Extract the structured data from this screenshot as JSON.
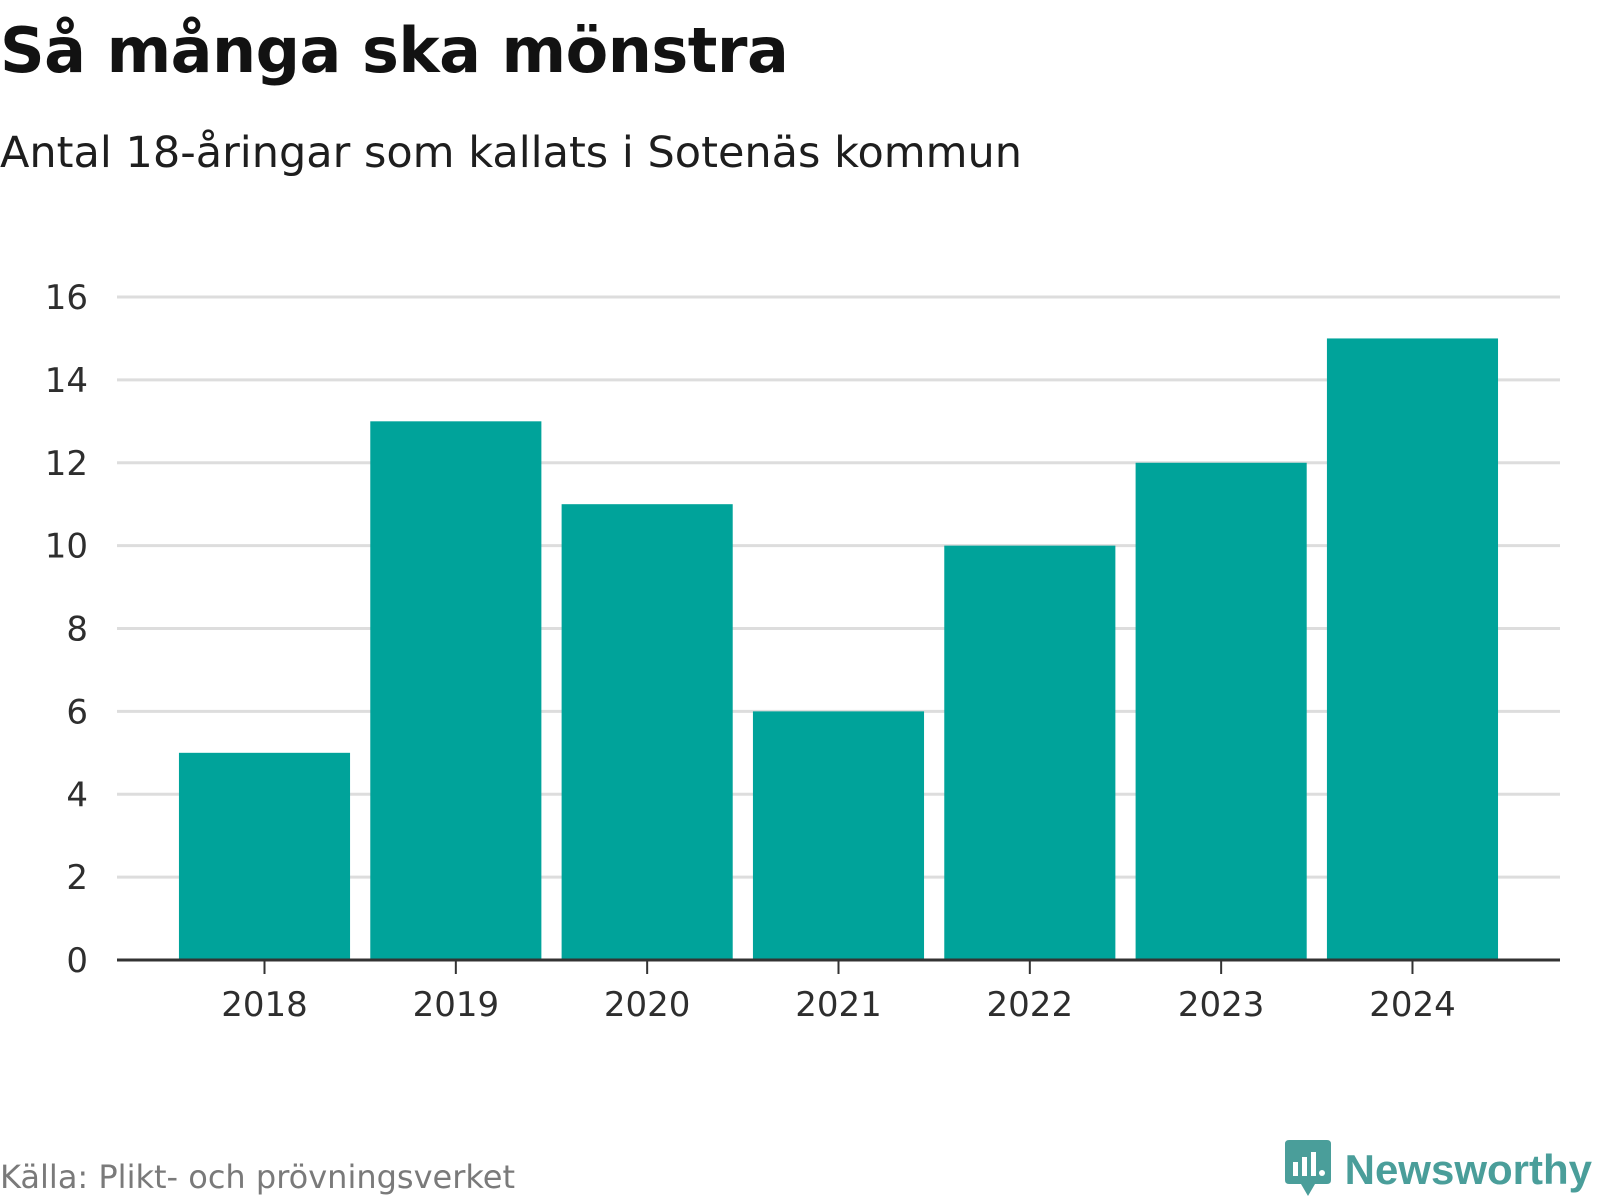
{
  "header": {
    "title": "Så många ska mönstra",
    "subtitle": "Antal 18-åringar som kallats i Sotenäs kommun"
  },
  "footer": {
    "source": "Källa: Plikt- och prövningsverket",
    "brand": "Newsworthy",
    "brand_icon": "newsworthy-logo-icon"
  },
  "colors": {
    "bar": "#00a39a",
    "grid": "#dddddd",
    "axis": "#333333",
    "brand": "#4a9e9a"
  },
  "chart_data": {
    "type": "bar",
    "title": "Så många ska mönstra",
    "subtitle": "Antal 18-åringar som kallats i Sotenäs kommun",
    "categories": [
      "2018",
      "2019",
      "2020",
      "2021",
      "2022",
      "2023",
      "2024"
    ],
    "values": [
      5,
      13,
      11,
      6,
      10,
      12,
      15
    ],
    "xlabel": "",
    "ylabel": "",
    "ylim": [
      0,
      16
    ],
    "yticks": [
      0,
      2,
      4,
      6,
      8,
      10,
      12,
      14,
      16
    ],
    "ytick_labels": [
      "0",
      "2",
      "4",
      "6",
      "8",
      "10",
      "12",
      "14",
      "16"
    ],
    "grid": true,
    "legend": "none"
  }
}
